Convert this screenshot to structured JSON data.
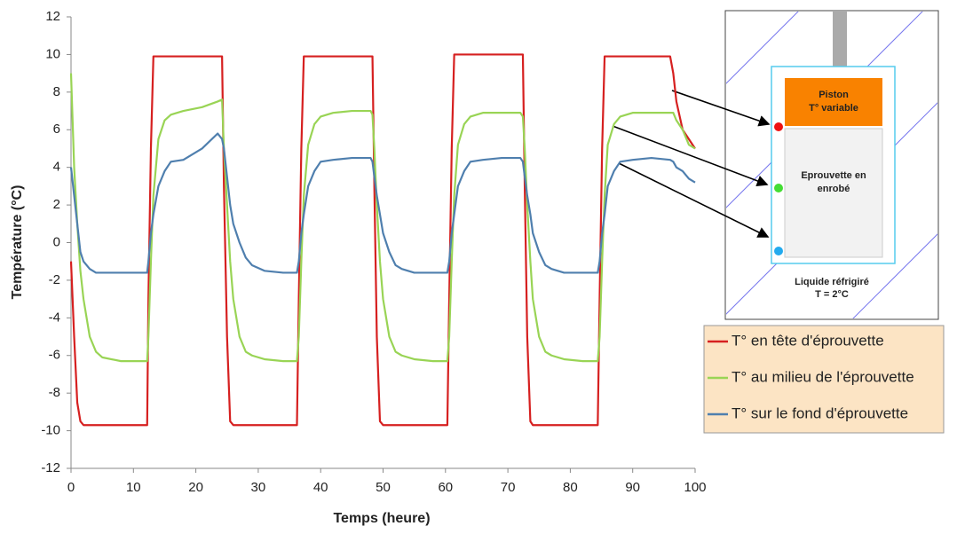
{
  "chart_data": {
    "type": "line",
    "xlabel": "Temps (heure)",
    "ylabel": "Température (°C)",
    "xlim": [
      0,
      100
    ],
    "xticks": [
      0,
      10,
      20,
      30,
      40,
      50,
      60,
      70,
      80,
      90,
      100
    ],
    "ylim": [
      -12,
      12
    ],
    "yticks": [
      -12,
      -10,
      -8,
      -6,
      -4,
      -2,
      0,
      2,
      4,
      6,
      8,
      10,
      12
    ],
    "grid": false,
    "legend": "right",
    "x": [
      0,
      0.5,
      1,
      1.5,
      2,
      3,
      4,
      5,
      8,
      12.2,
      12.4,
      12.8,
      13.2,
      14,
      15,
      16,
      18,
      21,
      23.5,
      24.2,
      24.5,
      25,
      25.5,
      26,
      27,
      28,
      29,
      31,
      34,
      36.2,
      36.5,
      36.9,
      37.3,
      38,
      39,
      40,
      42,
      45,
      48,
      48.3,
      48.6,
      49,
      49.5,
      50,
      51,
      52,
      53,
      55,
      58,
      60.3,
      60.6,
      61,
      61.4,
      62,
      63,
      64,
      66,
      69,
      72,
      72.4,
      72.7,
      73.1,
      73.6,
      74,
      75,
      76,
      77,
      79,
      82,
      84.4,
      84.7,
      85.1,
      85.5,
      86,
      87,
      88,
      90,
      93,
      96,
      96.5,
      97,
      98,
      99,
      100
    ],
    "series": [
      {
        "name": "T° en tête d'éprouvette",
        "color": "#d62020",
        "values": [
          -1,
          -5,
          -8.5,
          -9.5,
          -9.7,
          -9.7,
          -9.7,
          -9.7,
          -9.7,
          -9.7,
          -3,
          5,
          9.9,
          9.9,
          9.9,
          9.9,
          9.9,
          9.9,
          9.9,
          9.9,
          3,
          -5,
          -9.5,
          -9.7,
          -9.7,
          -9.7,
          -9.7,
          -9.7,
          -9.7,
          -9.7,
          -3,
          5,
          9.9,
          9.9,
          9.9,
          9.9,
          9.9,
          9.9,
          9.9,
          9.9,
          3,
          -5,
          -9.5,
          -9.7,
          -9.7,
          -9.7,
          -9.7,
          -9.7,
          -9.7,
          -9.7,
          -3,
          5,
          10,
          10,
          10,
          10,
          10,
          10,
          10,
          10,
          3,
          -5,
          -9.5,
          -9.7,
          -9.7,
          -9.7,
          -9.7,
          -9.7,
          -9.7,
          -9.7,
          -3,
          5,
          9.9,
          9.9,
          9.9,
          9.9,
          9.9,
          9.9,
          9.9,
          9,
          7.5,
          6,
          5.5,
          5
        ]
      },
      {
        "name": "T° au milieu de l'éprouvette",
        "color": "#99d455",
        "values": [
          9,
          4,
          1,
          -1.5,
          -3,
          -5,
          -5.8,
          -6.1,
          -6.3,
          -6.3,
          -5,
          -1,
          2.5,
          5.5,
          6.5,
          6.8,
          7,
          7.2,
          7.5,
          7.6,
          5,
          2,
          -1,
          -3,
          -5,
          -5.8,
          -6,
          -6.2,
          -6.3,
          -6.3,
          -5,
          -1,
          2.5,
          5.2,
          6.3,
          6.7,
          6.9,
          7,
          7,
          6.8,
          5,
          2,
          -1,
          -3,
          -5,
          -5.8,
          -6,
          -6.2,
          -6.3,
          -6.3,
          -5,
          -1,
          2.5,
          5.2,
          6.3,
          6.7,
          6.9,
          6.9,
          6.9,
          6.7,
          5,
          2,
          -1,
          -3,
          -5,
          -5.8,
          -6,
          -6.2,
          -6.3,
          -6.3,
          -5,
          -1,
          2.5,
          5.2,
          6.3,
          6.7,
          6.9,
          6.9,
          6.9,
          6.9,
          6.5,
          6,
          5.2,
          5
        ]
      },
      {
        "name": "T° sur le fond d'éprouvette",
        "color": "#4f7fae",
        "values": [
          4,
          2.5,
          1,
          -0.5,
          -1,
          -1.4,
          -1.6,
          -1.6,
          -1.6,
          -1.6,
          -1,
          0.5,
          1.5,
          3,
          3.8,
          4.3,
          4.4,
          5,
          5.8,
          5.5,
          5,
          3.5,
          2,
          1,
          0,
          -0.8,
          -1.2,
          -1.5,
          -1.6,
          -1.6,
          -1,
          0.5,
          1.5,
          3,
          3.8,
          4.3,
          4.4,
          4.5,
          4.5,
          4.3,
          3.5,
          2.5,
          1.5,
          0.5,
          -0.5,
          -1.2,
          -1.4,
          -1.6,
          -1.6,
          -1.6,
          -1,
          0.5,
          1.5,
          3,
          3.8,
          4.3,
          4.4,
          4.5,
          4.5,
          4.3,
          3.5,
          2.5,
          1.5,
          0.5,
          -0.5,
          -1.2,
          -1.4,
          -1.6,
          -1.6,
          -1.6,
          -1,
          0.5,
          1.5,
          3,
          3.8,
          4.3,
          4.4,
          4.5,
          4.4,
          4.3,
          4,
          3.8,
          3.4,
          3.2
        ]
      }
    ]
  },
  "diagram": {
    "piston": [
      "Piston",
      "T° variable"
    ],
    "specimen": [
      "Eprouvette en",
      "enrobé"
    ],
    "liquid": [
      "Liquide réfrigiré",
      "T = 2°C"
    ]
  }
}
